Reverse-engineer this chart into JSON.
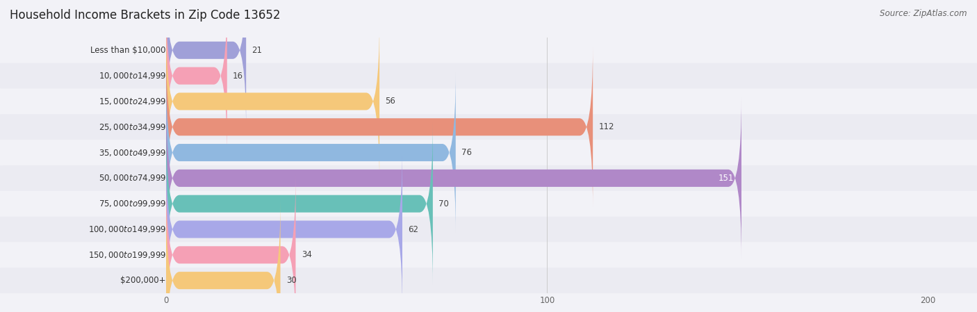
{
  "title": "Household Income Brackets in Zip Code 13652",
  "source": "Source: ZipAtlas.com",
  "categories": [
    "Less than $10,000",
    "$10,000 to $14,999",
    "$15,000 to $24,999",
    "$25,000 to $34,999",
    "$35,000 to $49,999",
    "$50,000 to $74,999",
    "$75,000 to $99,999",
    "$100,000 to $149,999",
    "$150,000 to $199,999",
    "$200,000+"
  ],
  "values": [
    21,
    16,
    56,
    112,
    76,
    151,
    70,
    62,
    34,
    30
  ],
  "bar_colors": [
    "#a0a0d8",
    "#f5a0b5",
    "#f5c87a",
    "#e8907a",
    "#90b8e0",
    "#b088c8",
    "#68c0b8",
    "#a8a8e8",
    "#f5a0b5",
    "#f5c87a"
  ],
  "row_bg_colors": [
    "#f2f2f7",
    "#ebebf2",
    "#f2f2f7",
    "#ebebf2",
    "#f2f2f7",
    "#ebebf2",
    "#f2f2f7",
    "#ebebf2",
    "#f2f2f7",
    "#ebebf2"
  ],
  "xlim": [
    0,
    200
  ],
  "xticks": [
    0,
    100,
    200
  ],
  "title_fontsize": 12,
  "label_fontsize": 8.5,
  "value_fontsize": 8.5,
  "source_fontsize": 8.5,
  "fig_bg": "#f2f2f7",
  "label_color": "#333333",
  "value_color_dark": "#444444",
  "value_color_light": "#ffffff",
  "label_inside_bar_threshold": 151
}
